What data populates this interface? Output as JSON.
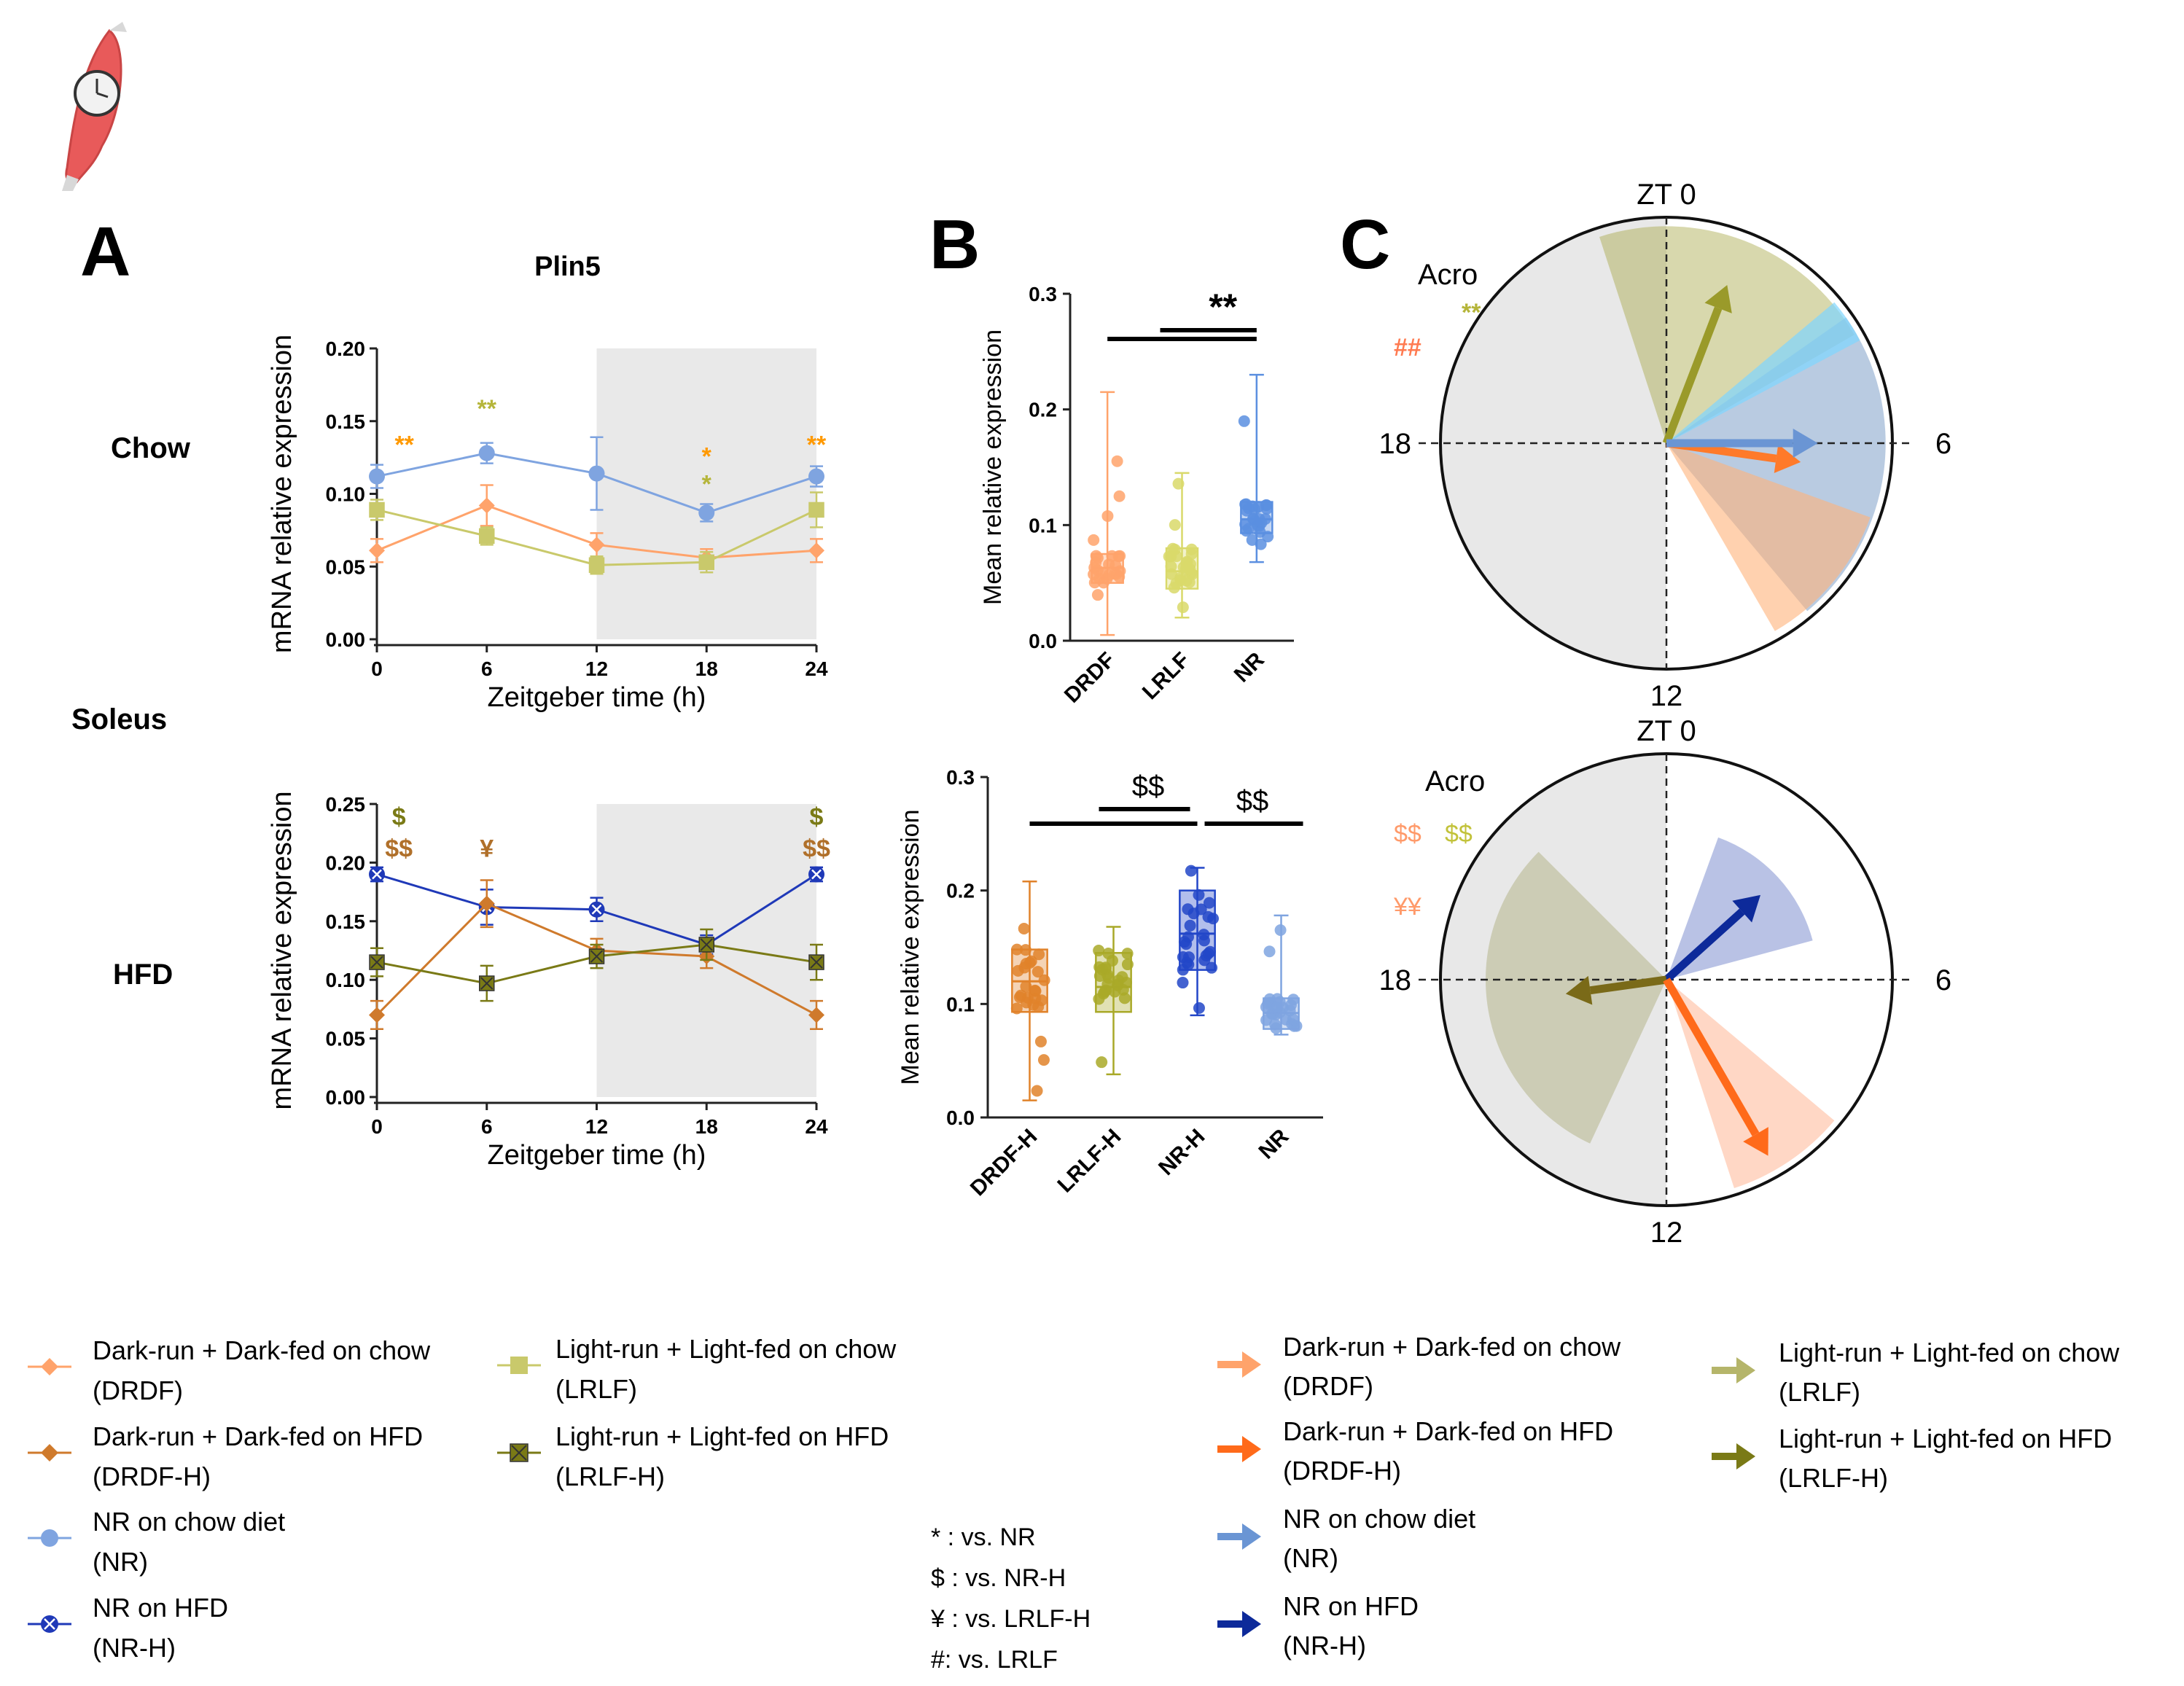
{
  "colors": {
    "drdf": "#ffa36b",
    "drdf_h": "#cf7a2c",
    "drdf_h_arrow": "#ff6a1a",
    "lrlf": "#c9c96b",
    "lrlf_h": "#7a7a16",
    "nr": "#7fa4e0",
    "nr_h": "#1f39b8",
    "nr_h_arrow": "#0d2a9a",
    "shade": "#e9e9e9",
    "sig_orange": "#ff9900",
    "sig_olive": "#b5b53a",
    "sig_hash": "#ff7a50",
    "sig_brown": "#b0702a"
  },
  "panels": {
    "a": "A",
    "b": "B",
    "c": "C"
  },
  "rows": {
    "chow": "Chow",
    "soleus": "Soleus",
    "hfd": "HFD"
  },
  "chart_data": [
    {
      "id": "A-chow",
      "type": "line",
      "title": "Plin5",
      "xlabel": "Zeitgeber time (h)",
      "ylabel": "mRNA relative expression",
      "x": [
        0,
        6,
        12,
        18,
        24
      ],
      "xticks": [
        "0",
        "6",
        "12",
        "18",
        "24"
      ],
      "ylim": [
        0,
        0.2
      ],
      "yticks": [
        "0.00",
        "0.05",
        "0.10",
        "0.15",
        "0.20"
      ],
      "dark_phase": [
        12,
        24
      ],
      "series": [
        {
          "name": "NR",
          "color": "#7fa4e0",
          "values": [
            0.112,
            0.128,
            0.114,
            0.087,
            0.112
          ],
          "err": [
            0.008,
            0.007,
            0.025,
            0.006,
            0.007
          ]
        },
        {
          "name": "DRDF",
          "color": "#ffa36b",
          "values": [
            0.061,
            0.092,
            0.065,
            0.056,
            0.061
          ],
          "err": [
            0.008,
            0.014,
            0.008,
            0.006,
            0.008
          ]
        },
        {
          "name": "LRLF",
          "color": "#c9c96b",
          "values": [
            0.089,
            0.071,
            0.051,
            0.053,
            0.089
          ],
          "err": [
            0.007,
            0.006,
            0.006,
            0.007,
            0.012
          ]
        }
      ],
      "annotations": [
        {
          "text": "**",
          "x": 1.5,
          "y": 0.128,
          "color": "#ff9900"
        },
        {
          "text": "**",
          "x": 6,
          "y": 0.153,
          "color": "#b5b53a"
        },
        {
          "text": "*",
          "x": 18,
          "y": 0.12,
          "color": "#ff9900"
        },
        {
          "text": "*",
          "x": 18,
          "y": 0.101,
          "color": "#b5b53a"
        },
        {
          "text": "**",
          "x": 24,
          "y": 0.128,
          "color": "#ff9900"
        }
      ]
    },
    {
      "id": "A-hfd",
      "type": "line",
      "title": "",
      "xlabel": "Zeitgeber time (h)",
      "ylabel": "mRNA relative expression",
      "x": [
        0,
        6,
        12,
        18,
        24
      ],
      "xticks": [
        "0",
        "6",
        "12",
        "18",
        "24"
      ],
      "ylim": [
        0,
        0.25
      ],
      "yticks": [
        "0.00",
        "0.05",
        "0.10",
        "0.15",
        "0.20",
        "0.25"
      ],
      "dark_phase": [
        12,
        24
      ],
      "series": [
        {
          "name": "NR-H",
          "color": "#1f39b8",
          "values": [
            0.19,
            0.162,
            0.16,
            0.13,
            0.19
          ],
          "err": [
            0.006,
            0.015,
            0.01,
            0.008,
            0.006
          ]
        },
        {
          "name": "DRDF-H",
          "color": "#cf7a2c",
          "values": [
            0.07,
            0.165,
            0.125,
            0.12,
            0.07
          ],
          "err": [
            0.012,
            0.02,
            0.01,
            0.01,
            0.012
          ]
        },
        {
          "name": "LRLF-H",
          "color": "#7a7a16",
          "values": [
            0.115,
            0.097,
            0.12,
            0.13,
            0.115
          ],
          "err": [
            0.012,
            0.015,
            0.01,
            0.013,
            0.015
          ]
        }
      ],
      "annotations": [
        {
          "text": "$",
          "x": 1.2,
          "y": 0.232,
          "color": "#7a7a16"
        },
        {
          "text": "$$",
          "x": 1.2,
          "y": 0.205,
          "color": "#b0702a"
        },
        {
          "text": "¥",
          "x": 6,
          "y": 0.205,
          "color": "#b0702a"
        },
        {
          "text": "$",
          "x": 24,
          "y": 0.232,
          "color": "#7a7a16"
        },
        {
          "text": "$$",
          "x": 24,
          "y": 0.205,
          "color": "#b0702a"
        }
      ]
    },
    {
      "id": "B-chow",
      "type": "box",
      "ylabel": "Mean relative expression",
      "categories": [
        "DRDF",
        "LRLF",
        "NR"
      ],
      "ylim": [
        0,
        0.3
      ],
      "yticks": [
        "0.0",
        "0.1",
        "0.2",
        "0.3"
      ],
      "boxes": [
        {
          "name": "DRDF",
          "color": "#ffa36b",
          "min": 0.005,
          "q1": 0.05,
          "median": 0.063,
          "q3": 0.075,
          "max": 0.215
        },
        {
          "name": "LRLF",
          "color": "#d9d96a",
          "min": 0.02,
          "q1": 0.045,
          "median": 0.06,
          "q3": 0.08,
          "max": 0.145
        },
        {
          "name": "NR",
          "color": "#5b8fe0",
          "min": 0.068,
          "q1": 0.093,
          "median": 0.105,
          "q3": 0.12,
          "max": 0.23
        }
      ],
      "significance": [
        {
          "text": "**",
          "span": [
            "DRDF",
            "NR"
          ],
          "level": 0.26,
          "span2": [
            "LRLF",
            "NR"
          ],
          "level2": 0.27
        }
      ]
    },
    {
      "id": "B-hfd",
      "type": "box",
      "ylabel": "Mean relative expression",
      "categories": [
        "DRDF-H",
        "LRLF-H",
        "NR-H",
        "NR"
      ],
      "ylim": [
        0,
        0.3
      ],
      "yticks": [
        "0.0",
        "0.1",
        "0.2",
        "0.3"
      ],
      "boxes": [
        {
          "name": "DRDF-H",
          "color": "#e0822a",
          "min": 0.015,
          "q1": 0.093,
          "median": 0.12,
          "q3": 0.148,
          "max": 0.208
        },
        {
          "name": "LRLF-H",
          "color": "#a9a928",
          "min": 0.038,
          "q1": 0.093,
          "median": 0.115,
          "q3": 0.145,
          "max": 0.168
        },
        {
          "name": "NR-H",
          "color": "#2246c8",
          "min": 0.09,
          "q1": 0.13,
          "median": 0.162,
          "q3": 0.2,
          "max": 0.22
        },
        {
          "name": "NR",
          "color": "#7fa4e0",
          "min": 0.073,
          "q1": 0.078,
          "median": 0.092,
          "q3": 0.105,
          "max": 0.178
        }
      ],
      "significance": [
        {
          "text": "$$",
          "from": "LRLF-H",
          "to": "NR-H",
          "level": 0.27
        },
        {
          "text": "$$",
          "from": "NR-H",
          "to": "NR",
          "level": 0.255
        }
      ]
    },
    {
      "id": "C-chow",
      "type": "polar",
      "labels": {
        "top": "ZT 0",
        "right": "6",
        "bottom": "12",
        "left": "18"
      },
      "acro_title": "Acro",
      "acro_marks": [
        {
          "text": "**",
          "color": "#b5b53a"
        },
        {
          "text": "##",
          "color": "#ff7a50"
        }
      ],
      "arrows": [
        {
          "name": "LRLF",
          "color": "#9a9a2a",
          "angle_deg": 21,
          "length": 0.75
        },
        {
          "name": "DRDF",
          "color": "#ff7a2a",
          "angle_deg": 98,
          "length": 0.6
        },
        {
          "name": "NR",
          "color": "#6a95d4",
          "angle_deg": 90,
          "length": 0.67
        }
      ],
      "sectors": [
        {
          "name": "LRLF",
          "color": "#a9a94a",
          "from_deg": -18,
          "to_deg": 60,
          "radius": 0.96,
          "opacity": 0.45
        },
        {
          "name": "NR",
          "color": "#7fa0c8",
          "from_deg": 55,
          "to_deg": 140,
          "radius": 0.97,
          "opacity": 0.55
        },
        {
          "name": "DRDF",
          "color": "#ffb27a",
          "from_deg": 110,
          "to_deg": 150,
          "radius": 0.96,
          "opacity": 0.6
        },
        {
          "name": "NR-cyan",
          "color": "#7fd6ff",
          "from_deg": 50,
          "to_deg": 62,
          "radius": 0.97,
          "opacity": 0.7
        }
      ]
    },
    {
      "id": "C-hfd",
      "type": "polar",
      "labels": {
        "top": "ZT 0",
        "right": "6",
        "bottom": "12",
        "left": "18"
      },
      "acro_title": "Acro",
      "acro_marks": [
        {
          "text": "$$",
          "color": "#ff9a6a"
        },
        {
          "text": "$$",
          "color": "#c2c23a"
        },
        {
          "text": "¥¥",
          "color": "#ff9a6a"
        }
      ],
      "arrows": [
        {
          "name": "NR-H",
          "color": "#0d2a9a",
          "angle_deg": 48,
          "length": 0.56
        },
        {
          "name": "LRLF-H",
          "color": "#7a6a18",
          "angle_deg": 262,
          "length": 0.45
        },
        {
          "name": "DRDF-H",
          "color": "#ff6a1a",
          "angle_deg": 150,
          "length": 0.9
        }
      ],
      "sectors": [
        {
          "name": "NR-H",
          "color": "#7f8fcf",
          "from_deg": 20,
          "to_deg": 75,
          "radius": 0.67,
          "opacity": 0.55
        },
        {
          "name": "LRLF-H",
          "color": "#b5b58a",
          "from_deg": 205,
          "to_deg": 315,
          "radius": 0.8,
          "opacity": 0.55
        },
        {
          "name": "DRDF-H",
          "color": "#ffc6ad",
          "from_deg": 130,
          "to_deg": 162,
          "radius": 0.97,
          "opacity": 0.7
        }
      ]
    }
  ],
  "legend_left": [
    {
      "line1": "Dark-run + Dark-fed on chow",
      "line2": "(DRDF)",
      "color": "#ffa36b",
      "marker": "diamond"
    },
    {
      "line1": "Dark-run + Dark-fed on HFD",
      "line2": "(DRDF-H)",
      "color": "#cf7a2c",
      "marker": "diamond"
    },
    {
      "line1": "NR on chow diet",
      "line2": "(NR)",
      "color": "#7fa4e0",
      "marker": "circle"
    },
    {
      "line1": "NR on HFD",
      "line2": "(NR-H)",
      "color": "#1f39b8",
      "marker": "circle-x"
    }
  ],
  "legend_mid": [
    {
      "line1": "Light-run + Light-fed on chow",
      "line2": "(LRLF)",
      "color": "#c9c96b",
      "marker": "square"
    },
    {
      "line1": "Light-run + Light-fed on HFD",
      "line2": "(LRLF-H)",
      "color": "#7a7a16",
      "marker": "square-x"
    }
  ],
  "legend_keys": [
    "* : vs. NR",
    "$ : vs. NR-H",
    "¥ : vs. LRLF-H",
    "#: vs. LRLF"
  ],
  "legend_right_a": [
    {
      "line1": "Dark-run + Dark-fed on chow",
      "line2": "(DRDF)",
      "color": "#ffa36b"
    },
    {
      "line1": "Dark-run + Dark-fed on HFD",
      "line2": "(DRDF-H)",
      "color": "#ff6a1a"
    },
    {
      "line1": "NR on chow diet",
      "line2": "(NR)",
      "color": "#6a95d4"
    },
    {
      "line1": "NR on HFD",
      "line2": "(NR-H)",
      "color": "#0d2a9a"
    }
  ],
  "legend_right_b": [
    {
      "line1": "Light-run + Light-fed on chow",
      "line2": "(LRLF)",
      "color": "#b5b56a"
    },
    {
      "line1": "Light-run + Light-fed on HFD",
      "line2": "(LRLF-H)",
      "color": "#7a7a16"
    }
  ]
}
